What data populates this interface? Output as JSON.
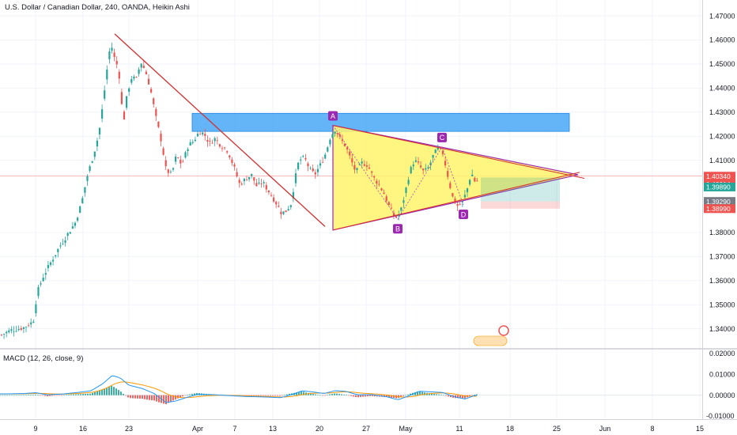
{
  "header": {
    "title": "U.S. Dollar / Canadian Dollar, 240, OANDA, Heikin Ashi"
  },
  "macd": {
    "title": "MACD (12, 26, close, 9)"
  },
  "colors": {
    "up": "#26a69a",
    "down": "#ef5350",
    "trendline": "#d32f2f",
    "zone": "#2196f3",
    "triangle_fill": "#fff36b",
    "triangle_stroke": "#9c27b0",
    "point_marker": "#9c27b0",
    "macd_line": "#2196f3",
    "signal_line": "#ff9800"
  },
  "chart_data": [
    {
      "type": "candlestick",
      "price_axis": {
        "ticks": [
          "1.47000",
          "1.46000",
          "1.45000",
          "1.44000",
          "1.43000",
          "1.42000",
          "1.41000",
          "1.40340",
          "1.40014",
          "1.39890",
          "1.39290",
          "1.38990",
          "1.38000",
          "1.37000",
          "1.36000",
          "1.35000",
          "1.34000"
        ],
        "ylim": [
          1.332,
          1.472
        ]
      },
      "time_axis": {
        "ticks": [
          "9",
          "16",
          "23",
          "Apr",
          "7",
          "13",
          "20",
          "27",
          "May",
          "11",
          "18",
          "25",
          "Jun",
          "8",
          "15"
        ]
      },
      "price_labels": [
        {
          "label": "1.40340",
          "value": 1.4034,
          "color": "#ef5350"
        },
        {
          "label": "1.40014",
          "value": 1.40014,
          "color": "#ef5350"
        },
        {
          "label": "1.39890",
          "value": 1.3989,
          "color": "#26a69a"
        },
        {
          "label": "1.39290",
          "value": 1.3929,
          "color": "#787b86"
        },
        {
          "label": "1.38990",
          "value": 1.3899,
          "color": "#ef5350"
        }
      ],
      "resistance_zone": {
        "from": 1.422,
        "to": 1.4295
      },
      "pattern_points": [
        {
          "label": "A",
          "price": 1.4245
        },
        {
          "label": "B",
          "price": 1.3855
        },
        {
          "label": "C",
          "price": 1.4155
        },
        {
          "label": "D",
          "price": 1.3915
        }
      ],
      "triangle": {
        "apex_price": 1.404,
        "base_top": 1.4245,
        "base_bottom": 1.381
      },
      "position_box": {
        "entry": 1.3929,
        "target": 1.3989,
        "stop": 1.3899
      }
    },
    {
      "type": "line",
      "title": "MACD (12, 26, close, 9)",
      "series": [
        {
          "name": "MACD",
          "color": "#2196f3"
        },
        {
          "name": "Signal",
          "color": "#ff9800"
        }
      ],
      "y_axis": {
        "ticks": [
          "0.02000",
          "0.01000",
          "0.00000",
          "-0.01000"
        ],
        "ylim": [
          -0.0115,
          0.0215
        ]
      }
    }
  ]
}
